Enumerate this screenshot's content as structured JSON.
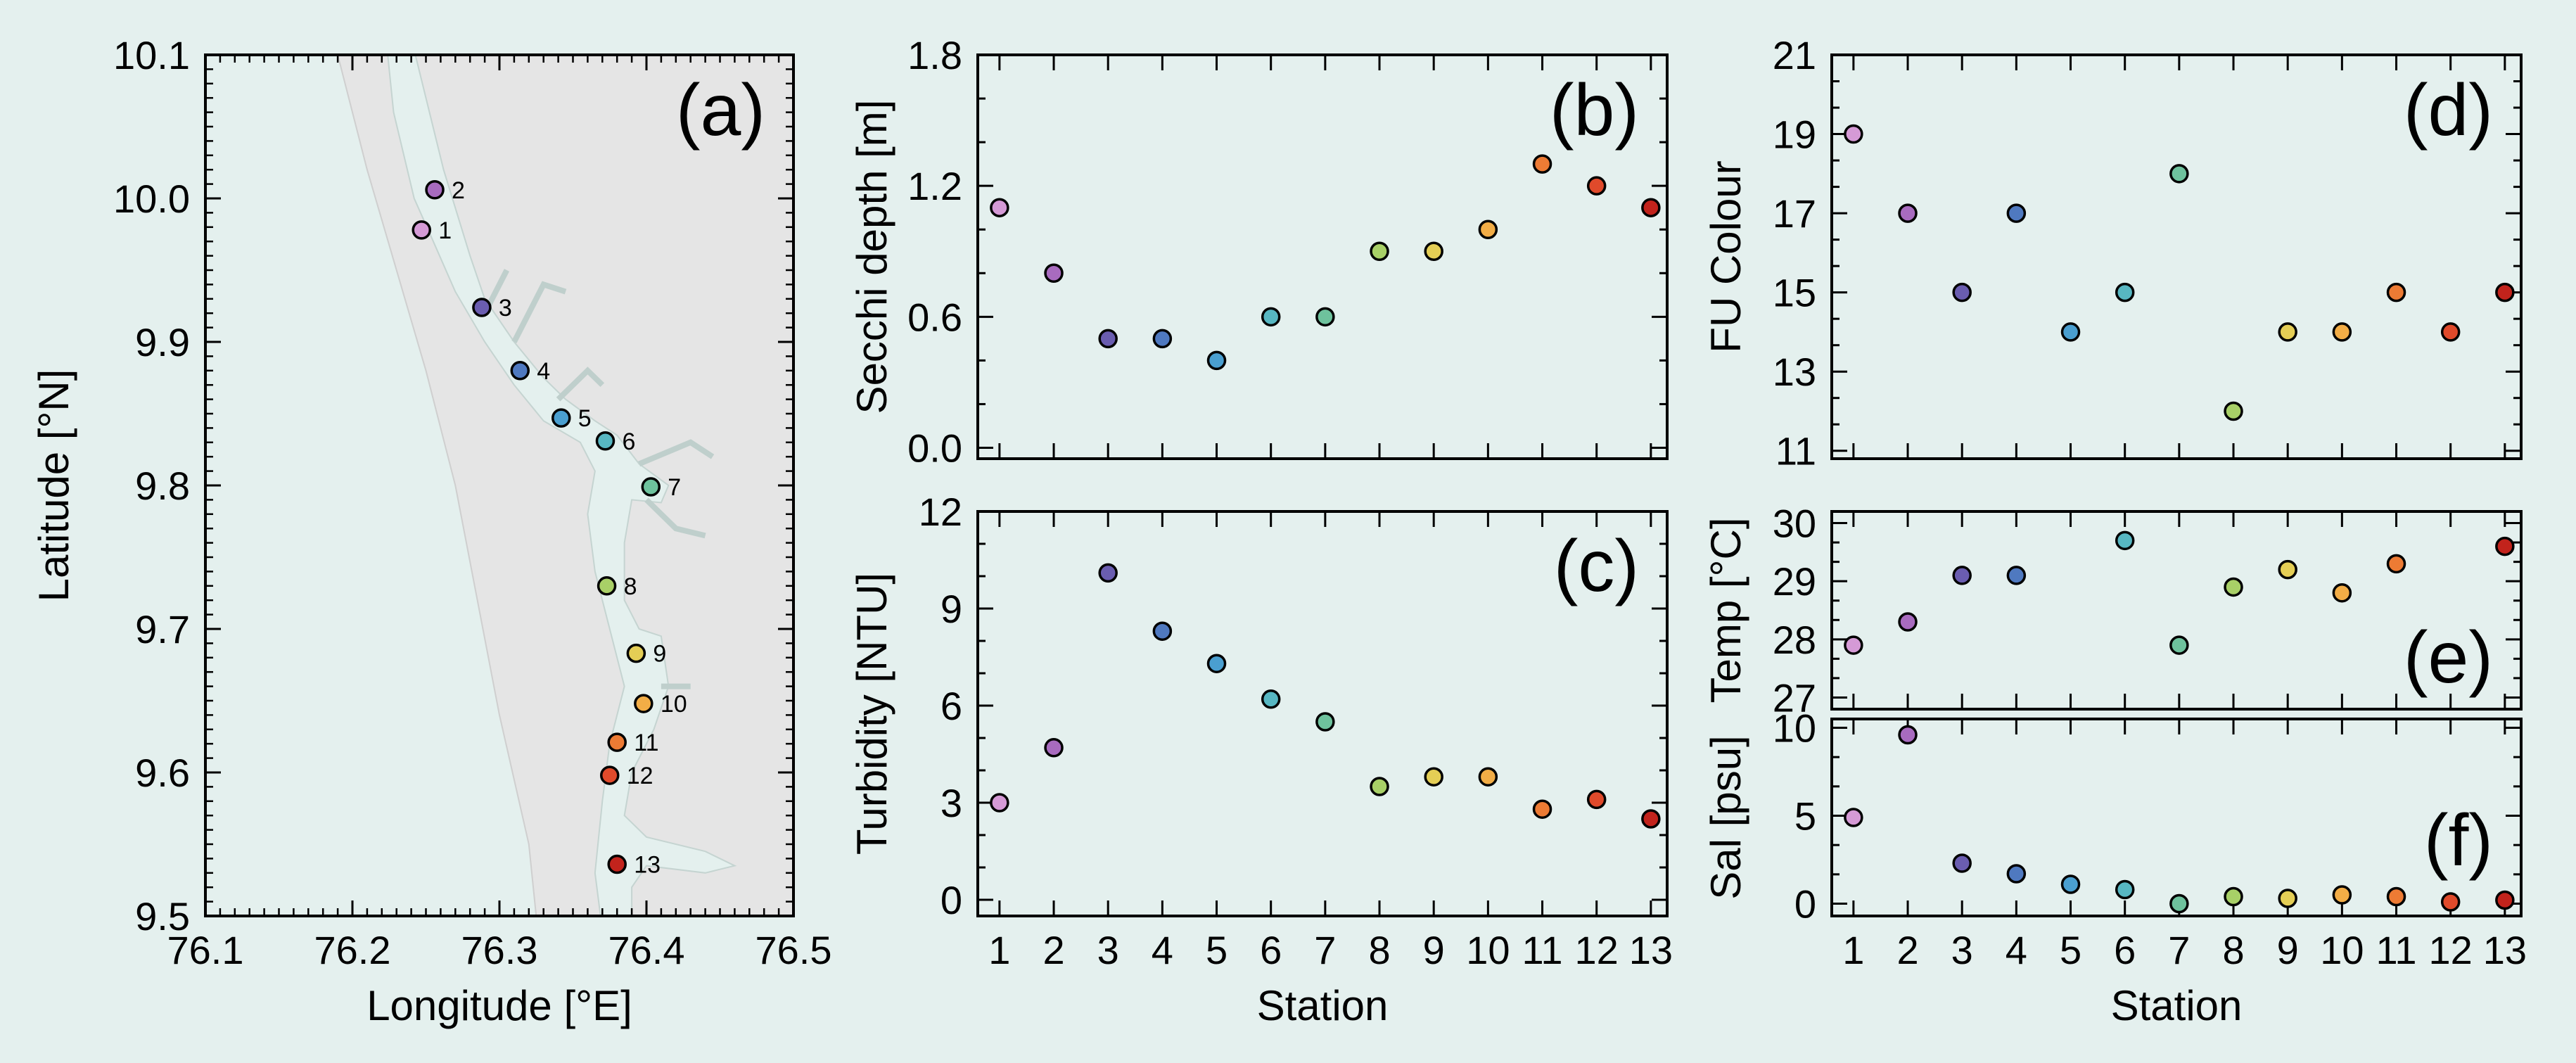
{
  "colors": {
    "background": "#e4f0ee",
    "land": "#e5e5e5",
    "water": "#e4f0ee",
    "stations": [
      "#d59ad6",
      "#a86bbf",
      "#6a5db0",
      "#4f79c0",
      "#4a9fd0",
      "#57b7c2",
      "#6ec29d",
      "#a8d067",
      "#e4ce55",
      "#f2ad46",
      "#ed7b34",
      "#e04a2b",
      "#c2231c"
    ]
  },
  "chart_data": [
    {
      "id": "a",
      "type": "scatter",
      "title": "(a)",
      "xlabel": "Longitude [°E]",
      "ylabel": "Latitude [°N]",
      "xlim": [
        76.1,
        76.5
      ],
      "ylim": [
        9.5,
        10.1
      ],
      "xticks": [
        "76.1",
        "76.2",
        "76.3",
        "76.4",
        "76.5"
      ],
      "yticks": [
        "9.5",
        "9.6",
        "9.7",
        "9.8",
        "9.9",
        "10.0",
        "10.1"
      ],
      "stations": [
        {
          "label": "1",
          "lon": 76.247,
          "lat": 9.978
        },
        {
          "label": "2",
          "lon": 76.256,
          "lat": 10.006
        },
        {
          "label": "3",
          "lon": 76.288,
          "lat": 9.924
        },
        {
          "label": "4",
          "lon": 76.314,
          "lat": 9.88
        },
        {
          "label": "5",
          "lon": 76.342,
          "lat": 9.847
        },
        {
          "label": "6",
          "lon": 76.372,
          "lat": 9.831
        },
        {
          "label": "7",
          "lon": 76.403,
          "lat": 9.799
        },
        {
          "label": "8",
          "lon": 76.373,
          "lat": 9.73
        },
        {
          "label": "9",
          "lon": 76.393,
          "lat": 9.683
        },
        {
          "label": "10",
          "lon": 76.398,
          "lat": 9.648
        },
        {
          "label": "11",
          "lon": 76.38,
          "lat": 9.621
        },
        {
          "label": "12",
          "lon": 76.375,
          "lat": 9.598
        },
        {
          "label": "13",
          "lon": 76.38,
          "lat": 9.536
        }
      ]
    },
    {
      "id": "b",
      "type": "scatter",
      "title": "(b)",
      "xlabel": "",
      "ylabel": "Secchi depth [m]",
      "x": [
        1,
        2,
        3,
        4,
        5,
        6,
        7,
        8,
        9,
        10,
        11,
        12,
        13
      ],
      "values": [
        1.1,
        0.8,
        0.5,
        0.5,
        0.4,
        0.6,
        0.6,
        0.9,
        0.9,
        1.0,
        1.3,
        1.2,
        1.1
      ],
      "ylim": [
        -0.05,
        1.8
      ],
      "yticks": [
        "0.0",
        "0.6",
        "1.2",
        "1.8"
      ]
    },
    {
      "id": "c",
      "type": "scatter",
      "title": "(c)",
      "xlabel": "Station",
      "ylabel": "Turbidity [NTU]",
      "x": [
        1,
        2,
        3,
        4,
        5,
        6,
        7,
        8,
        9,
        10,
        11,
        12,
        13
      ],
      "values": [
        3.0,
        4.7,
        10.1,
        8.3,
        7.3,
        6.2,
        5.5,
        3.5,
        3.8,
        3.8,
        2.8,
        3.1,
        2.5
      ],
      "ylim": [
        -0.5,
        12
      ],
      "yticks": [
        "0",
        "3",
        "6",
        "9",
        "12"
      ],
      "xticks": [
        "1",
        "2",
        "3",
        "4",
        "5",
        "6",
        "7",
        "8",
        "9",
        "10",
        "11",
        "12",
        "13"
      ]
    },
    {
      "id": "d",
      "type": "scatter",
      "title": "(d)",
      "xlabel": "",
      "ylabel": "FU Colour",
      "x": [
        1,
        2,
        3,
        4,
        5,
        6,
        7,
        8,
        9,
        10,
        11,
        12,
        13
      ],
      "values": [
        19,
        17,
        15,
        17,
        14,
        15,
        18,
        12,
        14,
        14,
        15,
        14,
        15
      ],
      "ylim": [
        10.8,
        21
      ],
      "yticks": [
        "11",
        "13",
        "15",
        "17",
        "19",
        "21"
      ]
    },
    {
      "id": "e",
      "type": "scatter",
      "title": "(e)",
      "xlabel": "",
      "ylabel": "Temp [°C]",
      "x": [
        1,
        2,
        3,
        4,
        5,
        6,
        7,
        8,
        9,
        10,
        11,
        12,
        13
      ],
      "values": [
        27.9,
        28.3,
        29.1,
        29.1,
        null,
        29.7,
        27.9,
        28.9,
        29.2,
        28.8,
        29.3,
        null,
        29.6
      ],
      "ylim": [
        26.8,
        30.2
      ],
      "yticks": [
        "27",
        "28",
        "29",
        "30"
      ]
    },
    {
      "id": "f",
      "type": "scatter",
      "title": "(f)",
      "xlabel": "Station",
      "ylabel": "Sal [psu]",
      "x": [
        1,
        2,
        3,
        4,
        5,
        6,
        7,
        8,
        9,
        10,
        11,
        12,
        13
      ],
      "values": [
        4.9,
        9.6,
        2.3,
        1.7,
        1.1,
        0.8,
        0.0,
        0.4,
        0.3,
        0.5,
        0.4,
        0.1,
        0.2
      ],
      "ylim": [
        -0.7,
        10.5
      ],
      "yticks": [
        "0",
        "5",
        "10"
      ],
      "xticks": [
        "1",
        "2",
        "3",
        "4",
        "5",
        "6",
        "7",
        "8",
        "9",
        "10",
        "11",
        "12",
        "13"
      ]
    }
  ]
}
